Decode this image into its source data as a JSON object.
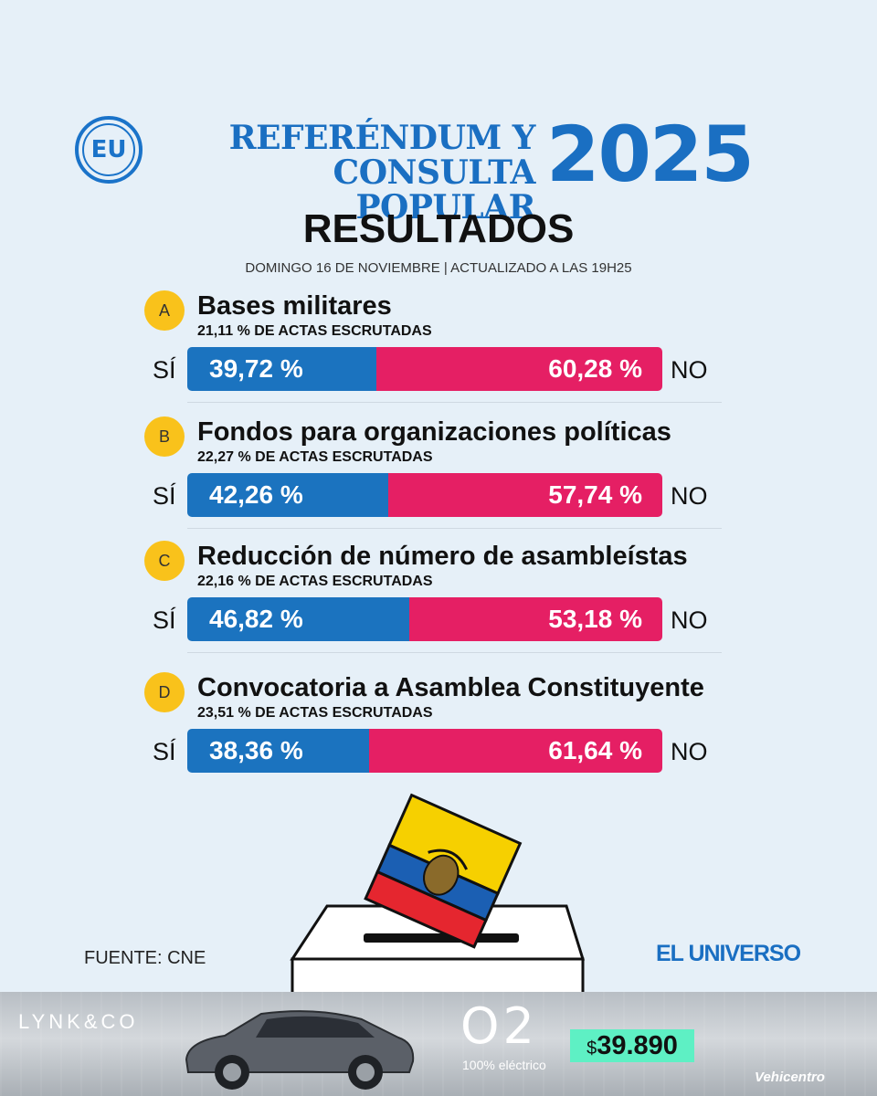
{
  "header": {
    "logo_text": "EU",
    "title_line1": "REFERÉNDUM Y",
    "title_line2": "CONSULTA POPULAR",
    "year": "2025",
    "heading": "RESULTADOS",
    "dateline": "DOMINGO 16 DE NOVIEMBRE | ACTUALIZADO A LAS 19H25"
  },
  "labels": {
    "si": "SÍ",
    "no": "NO"
  },
  "colors": {
    "si": "#1b73bf",
    "no": "#e51f64",
    "letter_badge": "#f9c21b",
    "brand_blue": "#1a6fc2"
  },
  "chart_data": {
    "type": "bar",
    "orientation": "horizontal",
    "stacked": true,
    "series": [
      {
        "name": "SÍ",
        "values": [
          39.72,
          42.26,
          46.82,
          38.36
        ]
      },
      {
        "name": "NO",
        "values": [
          60.28,
          57.74,
          53.18,
          61.64
        ]
      }
    ],
    "questions": [
      {
        "letter": "A",
        "title": "Bases militares",
        "subtitle": "21,11 % DE ACTAS ESCRUTADAS",
        "si_label": "39,72 %",
        "no_label": "60,28 %",
        "si": 39.72,
        "no": 60.28
      },
      {
        "letter": "B",
        "title": "Fondos para organizaciones políticas",
        "subtitle": "22,27 % DE ACTAS ESCRUTADAS",
        "si_label": "42,26 %",
        "no_label": "57,74 %",
        "si": 42.26,
        "no": 57.74
      },
      {
        "letter": "C",
        "title": "Reducción de número de asambleístas",
        "subtitle": "22,16 % DE ACTAS ESCRUTADAS",
        "si_label": "46,82 %",
        "no_label": "53,18 %",
        "si": 46.82,
        "no": 53.18
      },
      {
        "letter": "D",
        "title": "Convocatoria a Asamblea Constituyente",
        "subtitle": "23,51 % DE ACTAS ESCRUTADAS",
        "si_label": "38,36 %",
        "no_label": "61,64 %",
        "si": 38.36,
        "no": 61.64
      }
    ]
  },
  "footer": {
    "source": "FUENTE: CNE",
    "publisher": "EL UNIVERSO"
  },
  "ad": {
    "brand": "LYNK&CO",
    "model": "O2",
    "tagline": "100% eléctrico",
    "price_currency": "$",
    "price": "39.890",
    "dealer": "Vehicentro"
  }
}
